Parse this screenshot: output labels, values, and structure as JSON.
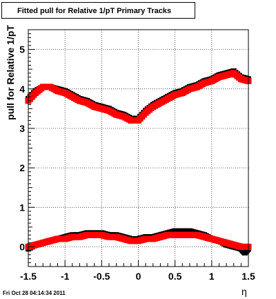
{
  "chart_data": {
    "type": "scatter",
    "title": "Fitted pull for Relative 1/pT  Primary Tracks",
    "xlabel": "η",
    "ylabel": "pull for Relative 1/pT",
    "xlim": [
      -1.5,
      1.5
    ],
    "ylim": [
      -0.5,
      5.5
    ],
    "x_ticks": [
      "-1.5",
      "-1",
      "-0.5",
      "0",
      "0.5",
      "1",
      "1.5"
    ],
    "y_ticks": [
      "0",
      "1",
      "2",
      "3",
      "4",
      "5"
    ],
    "grid": true,
    "series": [
      {
        "color": "#000000",
        "marker": "square",
        "x": [
          -1.5,
          -1.4,
          -1.3,
          -1.2,
          -1.1,
          -1.0,
          -0.9,
          -0.8,
          -0.7,
          -0.6,
          -0.5,
          -0.4,
          -0.3,
          -0.2,
          -0.1,
          0.0,
          0.1,
          0.2,
          0.3,
          0.4,
          0.5,
          0.6,
          0.7,
          0.8,
          0.9,
          1.0,
          1.1,
          1.2,
          1.3,
          1.4,
          1.5
        ],
        "y": [
          3.75,
          3.95,
          4.05,
          4.05,
          4.0,
          3.95,
          3.85,
          3.75,
          3.7,
          3.6,
          3.55,
          3.5,
          3.4,
          3.35,
          3.25,
          3.25,
          3.45,
          3.6,
          3.7,
          3.8,
          3.9,
          3.95,
          4.05,
          4.1,
          4.2,
          4.25,
          4.35,
          4.4,
          4.45,
          4.3,
          4.25
        ]
      },
      {
        "color": "#ff0000",
        "marker": "square",
        "x": [
          -1.5,
          -1.4,
          -1.3,
          -1.2,
          -1.1,
          -1.0,
          -0.9,
          -0.8,
          -0.7,
          -0.6,
          -0.5,
          -0.4,
          -0.3,
          -0.2,
          -0.1,
          0.0,
          0.1,
          0.2,
          0.3,
          0.4,
          0.5,
          0.6,
          0.7,
          0.8,
          0.9,
          1.0,
          1.1,
          1.2,
          1.3,
          1.4,
          1.5
        ],
        "y": [
          3.7,
          3.9,
          4.05,
          4.05,
          3.95,
          3.9,
          3.8,
          3.7,
          3.65,
          3.55,
          3.5,
          3.45,
          3.35,
          3.3,
          3.2,
          3.2,
          3.4,
          3.55,
          3.65,
          3.75,
          3.85,
          3.9,
          4.0,
          4.05,
          4.15,
          4.2,
          4.3,
          4.35,
          4.4,
          4.25,
          4.2
        ]
      },
      {
        "color": "#000000",
        "marker": "square",
        "x": [
          -1.5,
          -1.4,
          -1.3,
          -1.2,
          -1.1,
          -1.0,
          -0.9,
          -0.8,
          -0.7,
          -0.6,
          -0.5,
          -0.4,
          -0.3,
          -0.2,
          -0.1,
          0.0,
          0.1,
          0.2,
          0.3,
          0.4,
          0.5,
          0.6,
          0.7,
          0.8,
          0.9,
          1.0,
          1.1,
          1.2,
          1.3,
          1.4,
          1.45,
          1.5
        ],
        "y": [
          -0.05,
          0.05,
          0.1,
          0.15,
          0.2,
          0.25,
          0.3,
          0.3,
          0.35,
          0.35,
          0.35,
          0.3,
          0.3,
          0.25,
          0.2,
          0.2,
          0.25,
          0.25,
          0.3,
          0.35,
          0.4,
          0.4,
          0.4,
          0.35,
          0.3,
          0.2,
          0.15,
          0.05,
          0.0,
          -0.05,
          -0.15,
          -0.05
        ]
      },
      {
        "color": "#ff0000",
        "marker": "square",
        "x": [
          -1.5,
          -1.4,
          -1.3,
          -1.2,
          -1.1,
          -1.0,
          -0.9,
          -0.8,
          -0.7,
          -0.6,
          -0.5,
          -0.4,
          -0.3,
          -0.2,
          -0.1,
          0.0,
          0.1,
          0.2,
          0.3,
          0.4,
          0.5,
          0.6,
          0.7,
          0.8,
          0.9,
          1.0,
          1.1,
          1.2,
          1.3,
          1.4,
          1.5
        ],
        "y": [
          0.0,
          0.05,
          0.1,
          0.15,
          0.2,
          0.2,
          0.25,
          0.25,
          0.3,
          0.3,
          0.3,
          0.25,
          0.25,
          0.2,
          0.15,
          0.15,
          0.2,
          0.2,
          0.25,
          0.3,
          0.3,
          0.3,
          0.3,
          0.3,
          0.25,
          0.2,
          0.15,
          0.1,
          0.05,
          0.0,
          0.0
        ]
      }
    ]
  },
  "footer": {
    "date": "Fri Oct 28 04:14:34 2011"
  }
}
